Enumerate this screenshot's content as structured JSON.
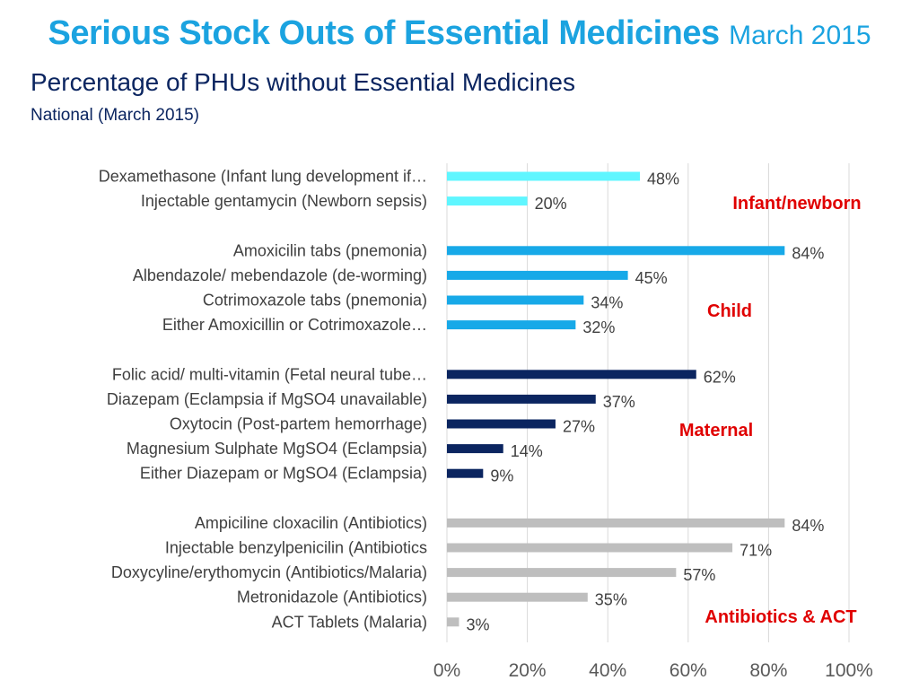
{
  "header": {
    "title": "Serious Stock Outs of Essential Medicines",
    "title_date": "March 2015",
    "subtitle": "Percentage of PHUs without Essential Medicines",
    "scope": "National (March 2015)"
  },
  "chart_data": {
    "type": "bar",
    "orientation": "horizontal",
    "title": "Percentage of PHUs without Essential Medicines",
    "xlim": [
      0,
      100
    ],
    "x_ticks": [
      "0%",
      "20%",
      "40%",
      "60%",
      "80%",
      "100%"
    ],
    "grid": true,
    "groups": [
      {
        "name": "Infant/newborn",
        "color": "#5ff6ff",
        "label_color": "#e00000",
        "items": [
          {
            "label": "Dexamethasone (Infant lung development if…",
            "value": 48,
            "value_label": "48%"
          },
          {
            "label": "Injectable gentamycin (Newborn sepsis)",
            "value": 20,
            "value_label": "20%"
          }
        ]
      },
      {
        "name": "Child",
        "color": "#17a9e8",
        "label_color": "#e00000",
        "items": [
          {
            "label": "Amoxicilin tabs (pnemonia)",
            "value": 84,
            "value_label": "84%"
          },
          {
            "label": "Albendazole/ mebendazole (de-worming)",
            "value": 45,
            "value_label": "45%"
          },
          {
            "label": "Cotrimoxazole tabs (pnemonia)",
            "value": 34,
            "value_label": "34%"
          },
          {
            "label": "Either Amoxicillin or Cotrimoxazole…",
            "value": 32,
            "value_label": "32%"
          }
        ]
      },
      {
        "name": "Maternal",
        "color": "#0b2560",
        "label_color": "#e00000",
        "items": [
          {
            "label": "Folic acid/ multi-vitamin (Fetal neural tube…",
            "value": 62,
            "value_label": "62%"
          },
          {
            "label": "Diazepam (Eclampsia if MgSO4 unavailable)",
            "value": 37,
            "value_label": "37%"
          },
          {
            "label": "Oxytocin (Post-partem hemorrhage)",
            "value": 27,
            "value_label": "27%"
          },
          {
            "label": "Magnesium Sulphate MgSO4 (Eclampsia)",
            "value": 14,
            "value_label": "14%"
          },
          {
            "label": "Either Diazepam or MgSO4 (Eclampsia)",
            "value": 9,
            "value_label": "9%"
          }
        ]
      },
      {
        "name": "Antibiotics & ACT",
        "color": "#bebebe",
        "label_color": "#e00000",
        "items": [
          {
            "label": "Ampiciline cloxacilin (Antibiotics)",
            "value": 84,
            "value_label": "84%"
          },
          {
            "label": "Injectable benzylpenicilin (Antibiotics",
            "value": 71,
            "value_label": "71%"
          },
          {
            "label": "Doxycyline/erythomycin (Antibiotics/Malaria)",
            "value": 57,
            "value_label": "57%"
          },
          {
            "label": "Metronidazole (Antibiotics)",
            "value": 35,
            "value_label": "35%"
          },
          {
            "label": "ACT Tablets (Malaria)",
            "value": 3,
            "value_label": "3%"
          }
        ]
      }
    ]
  }
}
